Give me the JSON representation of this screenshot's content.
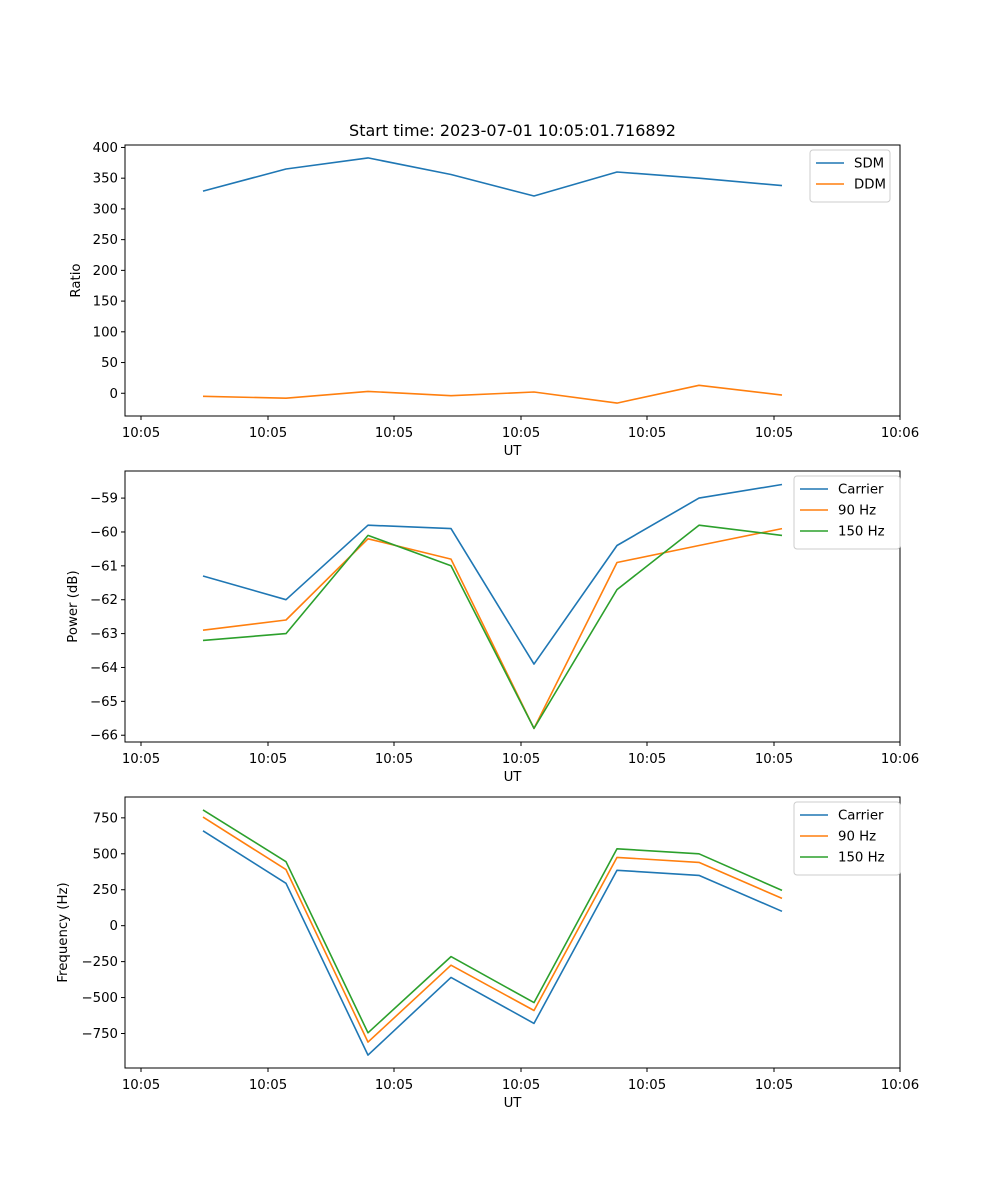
{
  "figure": {
    "title": "Start time: 2023-07-01 10:05:01.716892"
  },
  "chart_data": [
    {
      "type": "line",
      "title": "Start time: 2023-07-01 10:05:01.716892",
      "xlabel": "UT",
      "ylabel": "Ratio",
      "x_tick_labels": [
        "10:05",
        "10:05",
        "10:05",
        "10:05",
        "10:05",
        "10:05",
        "10:05"
      ],
      "x_last_tick_label": "10:06",
      "y_ticks": [
        0,
        50,
        100,
        150,
        200,
        250,
        300,
        350,
        400
      ],
      "ylim": [
        -37,
        404
      ],
      "legend_location": "top-right",
      "series": [
        {
          "name": "SDM",
          "color": "#1f77b4",
          "values": [
            329,
            365,
            383,
            356,
            321,
            360,
            350,
            338
          ]
        },
        {
          "name": "DDM",
          "color": "#ff7f0e",
          "values": [
            -5,
            -8,
            3,
            -4,
            2,
            -16,
            13,
            -3
          ]
        }
      ]
    },
    {
      "type": "line",
      "title": "",
      "xlabel": "UT",
      "ylabel": "Power (dB)",
      "x_tick_labels": [
        "10:05",
        "10:05",
        "10:05",
        "10:05",
        "10:05",
        "10:05",
        "10:05"
      ],
      "x_last_tick_label": "10:06",
      "y_ticks": [
        -66,
        -65,
        -64,
        -63,
        -62,
        -61,
        -60,
        -59
      ],
      "ylim": [
        -66.2,
        -58.2
      ],
      "legend_location": "top-right",
      "series": [
        {
          "name": "Carrier",
          "color": "#1f77b4",
          "values": [
            -61.3,
            -62.0,
            -59.8,
            -59.9,
            -63.9,
            -60.4,
            -59.0,
            -58.6
          ]
        },
        {
          "name": "90 Hz",
          "color": "#ff7f0e",
          "values": [
            -62.9,
            -62.6,
            -60.2,
            -60.8,
            -65.8,
            -60.9,
            -60.4,
            -59.9
          ]
        },
        {
          "name": "150 Hz",
          "color": "#2ca02c",
          "values": [
            -63.2,
            -63.0,
            -60.1,
            -61.0,
            -65.8,
            -61.7,
            -59.8,
            -60.1
          ]
        }
      ]
    },
    {
      "type": "line",
      "title": "",
      "xlabel": "UT",
      "ylabel": "Frequency (Hz)",
      "x_tick_labels": [
        "10:05",
        "10:05",
        "10:05",
        "10:05",
        "10:05",
        "10:05",
        "10:05"
      ],
      "x_last_tick_label": "10:06",
      "y_ticks": [
        -750,
        -500,
        -250,
        0,
        250,
        500,
        750
      ],
      "ylim": [
        -990,
        895
      ],
      "legend_location": "top-right",
      "series": [
        {
          "name": "Carrier",
          "color": "#1f77b4",
          "values": [
            660,
            295,
            -900,
            -360,
            -680,
            385,
            350,
            100
          ]
        },
        {
          "name": "90 Hz",
          "color": "#ff7f0e",
          "values": [
            755,
            390,
            -810,
            -275,
            -590,
            475,
            440,
            190
          ]
        },
        {
          "name": "150 Hz",
          "color": "#2ca02c",
          "values": [
            805,
            445,
            -745,
            -215,
            -535,
            535,
            500,
            245
          ]
        }
      ]
    }
  ]
}
